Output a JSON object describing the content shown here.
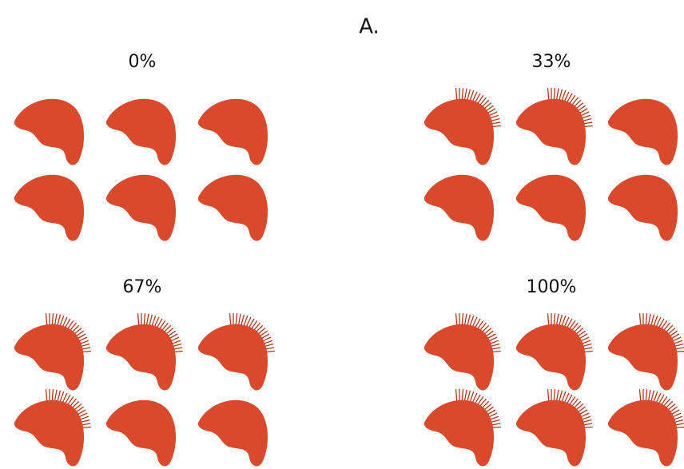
{
  "title": "A.",
  "panels": [
    {
      "label": "0%"
    },
    {
      "label": "33%"
    },
    {
      "label": "67%"
    },
    {
      "label": "100%"
    }
  ]
}
